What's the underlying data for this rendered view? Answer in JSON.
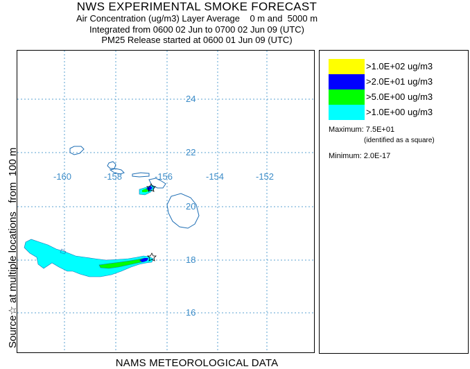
{
  "header": {
    "title": "NWS EXPERIMENTAL SMOKE FORECAST",
    "line1": "Air Concentration (ug/m3) Layer Average    0 m and  5000 m",
    "line2": "Integrated from 0600 02 Jun to 0700 02 Jun 09 (UTC)",
    "line3": "PM25 Release started at 0600 01 Jun 09 (UTC)"
  },
  "side_label": "Source☆ at multiple locations   from  100 m",
  "footer": "NAMS METEOROLOGICAL DATA",
  "map": {
    "lon_labels": [
      "-160",
      "-158",
      "-156",
      "-154",
      "-152"
    ],
    "lat_labels": [
      "24",
      "22",
      "20",
      "18",
      "16"
    ],
    "grid_color": "#5aa0d0",
    "label_color": "#3c8cc8",
    "coast_color": "#1e6eb4",
    "source_marker": "star"
  },
  "legend": {
    "items": [
      {
        "label": ">1.0E+02 ug/m3",
        "color": "#ffff00"
      },
      {
        "label": ">2.0E+01 ug/m3",
        "color": "#0000ff"
      },
      {
        "label": ">5.0E+00 ug/m3",
        "color": "#00ff00"
      },
      {
        "label": ">1.0E+00 ug/m3",
        "color": "#00ffff"
      }
    ],
    "maximum": "Maximum: 7.5E+01",
    "maximum_note": "(identified as a square)",
    "minimum": "Minimum: 2.0E-17"
  }
}
